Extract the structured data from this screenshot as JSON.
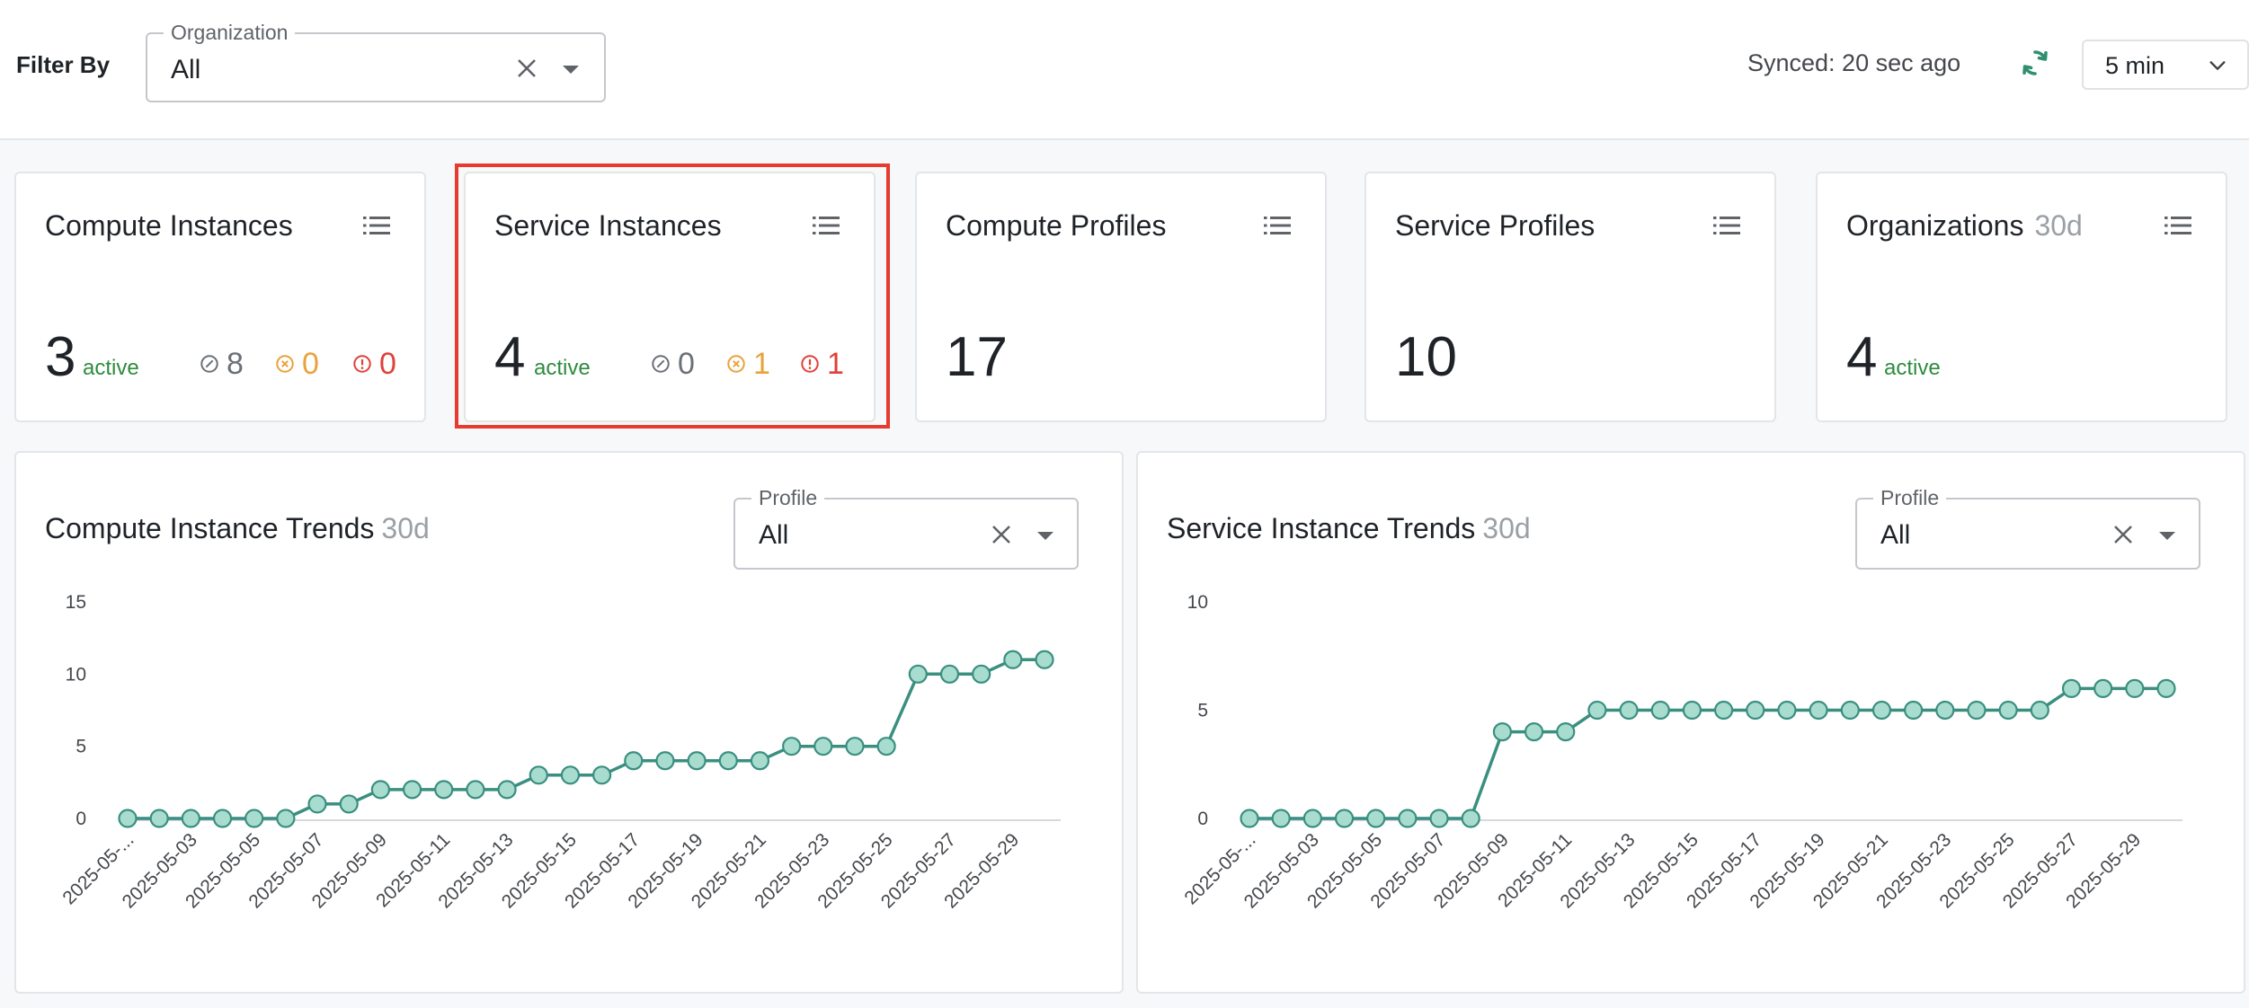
{
  "filter": {
    "label": "Filter By",
    "organization": {
      "legend": "Organization",
      "value": "All"
    },
    "synced_text": "Synced: 20 sec ago",
    "interval": "5 min"
  },
  "cards": [
    {
      "title": "Compute Instances",
      "suffix": "",
      "count": "3",
      "active_label": "active",
      "stats": {
        "stopped": "8",
        "warning": "0",
        "error": "0"
      }
    },
    {
      "title": "Service Instances",
      "suffix": "",
      "count": "4",
      "active_label": "active",
      "stats": {
        "stopped": "0",
        "warning": "1",
        "error": "1"
      }
    },
    {
      "title": "Compute Profiles",
      "suffix": "",
      "count": "17",
      "active_label": ""
    },
    {
      "title": "Service Profiles",
      "suffix": "",
      "count": "10",
      "active_label": ""
    },
    {
      "title": "Organizations",
      "suffix": "30d",
      "count": "4",
      "active_label": "active"
    }
  ],
  "colors": {
    "line": "#3a8f80",
    "marker_fill": "#a8dccf",
    "active": "#2e8b3e",
    "warning": "#e9a23b",
    "error": "#e0413a",
    "highlight": "#e63b2e"
  },
  "panels": [
    {
      "title": "Compute Instance Trends",
      "suffix": "30d",
      "profile": {
        "legend": "Profile",
        "value": "All"
      }
    },
    {
      "title": "Service Instance Trends",
      "suffix": "30d",
      "profile": {
        "legend": "Profile",
        "value": "All"
      }
    }
  ],
  "chart_data": [
    {
      "type": "line",
      "title": "Compute Instance Trends",
      "xlabel": "",
      "ylabel": "",
      "ylim": [
        0,
        15
      ],
      "yticks": [
        0,
        5,
        10,
        15
      ],
      "x": [
        "2025-05-01",
        "2025-05-02",
        "2025-05-03",
        "2025-05-04",
        "2025-05-05",
        "2025-05-06",
        "2025-05-07",
        "2025-05-08",
        "2025-05-09",
        "2025-05-10",
        "2025-05-11",
        "2025-05-12",
        "2025-05-13",
        "2025-05-14",
        "2025-05-15",
        "2025-05-16",
        "2025-05-17",
        "2025-05-18",
        "2025-05-19",
        "2025-05-20",
        "2025-05-21",
        "2025-05-22",
        "2025-05-23",
        "2025-05-24",
        "2025-05-25",
        "2025-05-26",
        "2025-05-27",
        "2025-05-28",
        "2025-05-29",
        "2025-05-30"
      ],
      "xtick_labels": [
        "2025-05-...",
        "2025-05-03",
        "2025-05-05",
        "2025-05-07",
        "2025-05-09",
        "2025-05-11",
        "2025-05-13",
        "2025-05-15",
        "2025-05-17",
        "2025-05-19",
        "2025-05-21",
        "2025-05-23",
        "2025-05-25",
        "2025-05-27",
        "2025-05-29"
      ],
      "values": [
        0,
        0,
        0,
        0,
        0,
        0,
        1,
        1,
        2,
        2,
        2,
        2,
        2,
        3,
        3,
        3,
        4,
        4,
        4,
        4,
        4,
        5,
        5,
        5,
        5,
        10,
        10,
        10,
        11,
        11
      ]
    },
    {
      "type": "line",
      "title": "Service Instance Trends",
      "xlabel": "",
      "ylabel": "",
      "ylim": [
        0,
        10
      ],
      "yticks": [
        0,
        5,
        10
      ],
      "x": [
        "2025-05-01",
        "2025-05-02",
        "2025-05-03",
        "2025-05-04",
        "2025-05-05",
        "2025-05-06",
        "2025-05-07",
        "2025-05-08",
        "2025-05-09",
        "2025-05-10",
        "2025-05-11",
        "2025-05-12",
        "2025-05-13",
        "2025-05-14",
        "2025-05-15",
        "2025-05-16",
        "2025-05-17",
        "2025-05-18",
        "2025-05-19",
        "2025-05-20",
        "2025-05-21",
        "2025-05-22",
        "2025-05-23",
        "2025-05-24",
        "2025-05-25",
        "2025-05-26",
        "2025-05-27",
        "2025-05-28",
        "2025-05-29",
        "2025-05-30"
      ],
      "xtick_labels": [
        "2025-05-...",
        "2025-05-03",
        "2025-05-05",
        "2025-05-07",
        "2025-05-09",
        "2025-05-11",
        "2025-05-13",
        "2025-05-15",
        "2025-05-17",
        "2025-05-19",
        "2025-05-21",
        "2025-05-23",
        "2025-05-25",
        "2025-05-27",
        "2025-05-29"
      ],
      "values": [
        0,
        0,
        0,
        0,
        0,
        0,
        0,
        0,
        4,
        4,
        4,
        5,
        5,
        5,
        5,
        5,
        5,
        5,
        5,
        5,
        5,
        5,
        5,
        5,
        5,
        5,
        6,
        6,
        6,
        6
      ]
    }
  ]
}
